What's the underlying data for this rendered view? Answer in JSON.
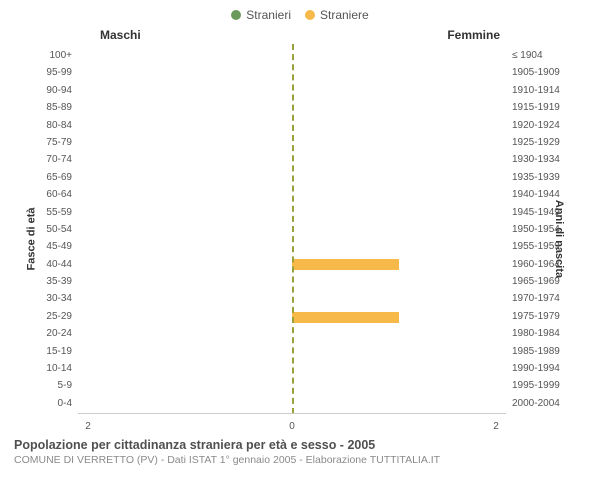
{
  "legend": {
    "items": [
      {
        "label": "Stranieri",
        "color": "#6a9a5b"
      },
      {
        "label": "Straniere",
        "color": "#f6b94a"
      }
    ]
  },
  "headers": {
    "left": "Maschi",
    "right": "Femmine"
  },
  "axis_labels": {
    "left": "Fasce di età",
    "right": "Anni di nascita"
  },
  "y_left": [
    "100+",
    "95-99",
    "90-94",
    "85-89",
    "80-84",
    "75-79",
    "70-74",
    "65-69",
    "60-64",
    "55-59",
    "50-54",
    "45-49",
    "40-44",
    "35-39",
    "30-34",
    "25-29",
    "20-24",
    "15-19",
    "10-14",
    "5-9",
    "0-4"
  ],
  "y_right": [
    "≤ 1904",
    "1905-1909",
    "1910-1914",
    "1915-1919",
    "1920-1924",
    "1925-1929",
    "1930-1934",
    "1935-1939",
    "1940-1944",
    "1945-1949",
    "1950-1954",
    "1955-1959",
    "1960-1964",
    "1965-1969",
    "1970-1974",
    "1975-1979",
    "1980-1984",
    "1985-1989",
    "1990-1994",
    "1995-1999",
    "2000-2004"
  ],
  "chart": {
    "type": "population-pyramid",
    "x_max": 2,
    "x_ticks": {
      "left": "2",
      "mid": "0",
      "right": "2"
    },
    "colors": {
      "male": "#6a9a5b",
      "female": "#f6b94a",
      "centerline": "#9aa03a",
      "axis": "#cccccc",
      "background": "#ffffff"
    },
    "font_sizes": {
      "tick": 10,
      "header": 12,
      "axis_label": 11,
      "caption_title": 12.5,
      "caption_sub": 10.5
    },
    "data": [
      {
        "age": "100+",
        "male": 0,
        "female": 0
      },
      {
        "age": "95-99",
        "male": 0,
        "female": 0
      },
      {
        "age": "90-94",
        "male": 0,
        "female": 0
      },
      {
        "age": "85-89",
        "male": 0,
        "female": 0
      },
      {
        "age": "80-84",
        "male": 0,
        "female": 0
      },
      {
        "age": "75-79",
        "male": 0,
        "female": 0
      },
      {
        "age": "70-74",
        "male": 0,
        "female": 0
      },
      {
        "age": "65-69",
        "male": 0,
        "female": 0
      },
      {
        "age": "60-64",
        "male": 0,
        "female": 0
      },
      {
        "age": "55-59",
        "male": 0,
        "female": 0
      },
      {
        "age": "50-54",
        "male": 0,
        "female": 0
      },
      {
        "age": "45-49",
        "male": 0,
        "female": 0
      },
      {
        "age": "40-44",
        "male": 0,
        "female": 1
      },
      {
        "age": "35-39",
        "male": 0,
        "female": 0
      },
      {
        "age": "30-34",
        "male": 0,
        "female": 0
      },
      {
        "age": "25-29",
        "male": 0,
        "female": 1
      },
      {
        "age": "20-24",
        "male": 0,
        "female": 0
      },
      {
        "age": "15-19",
        "male": 0,
        "female": 0
      },
      {
        "age": "10-14",
        "male": 0,
        "female": 0
      },
      {
        "age": "5-9",
        "male": 0,
        "female": 0
      },
      {
        "age": "0-4",
        "male": 0,
        "female": 0
      }
    ]
  },
  "caption": {
    "title": "Popolazione per cittadinanza straniera per età e sesso - 2005",
    "subtitle": "COMUNE DI VERRETTO (PV) - Dati ISTAT 1° gennaio 2005 - Elaborazione TUTTITALIA.IT"
  }
}
